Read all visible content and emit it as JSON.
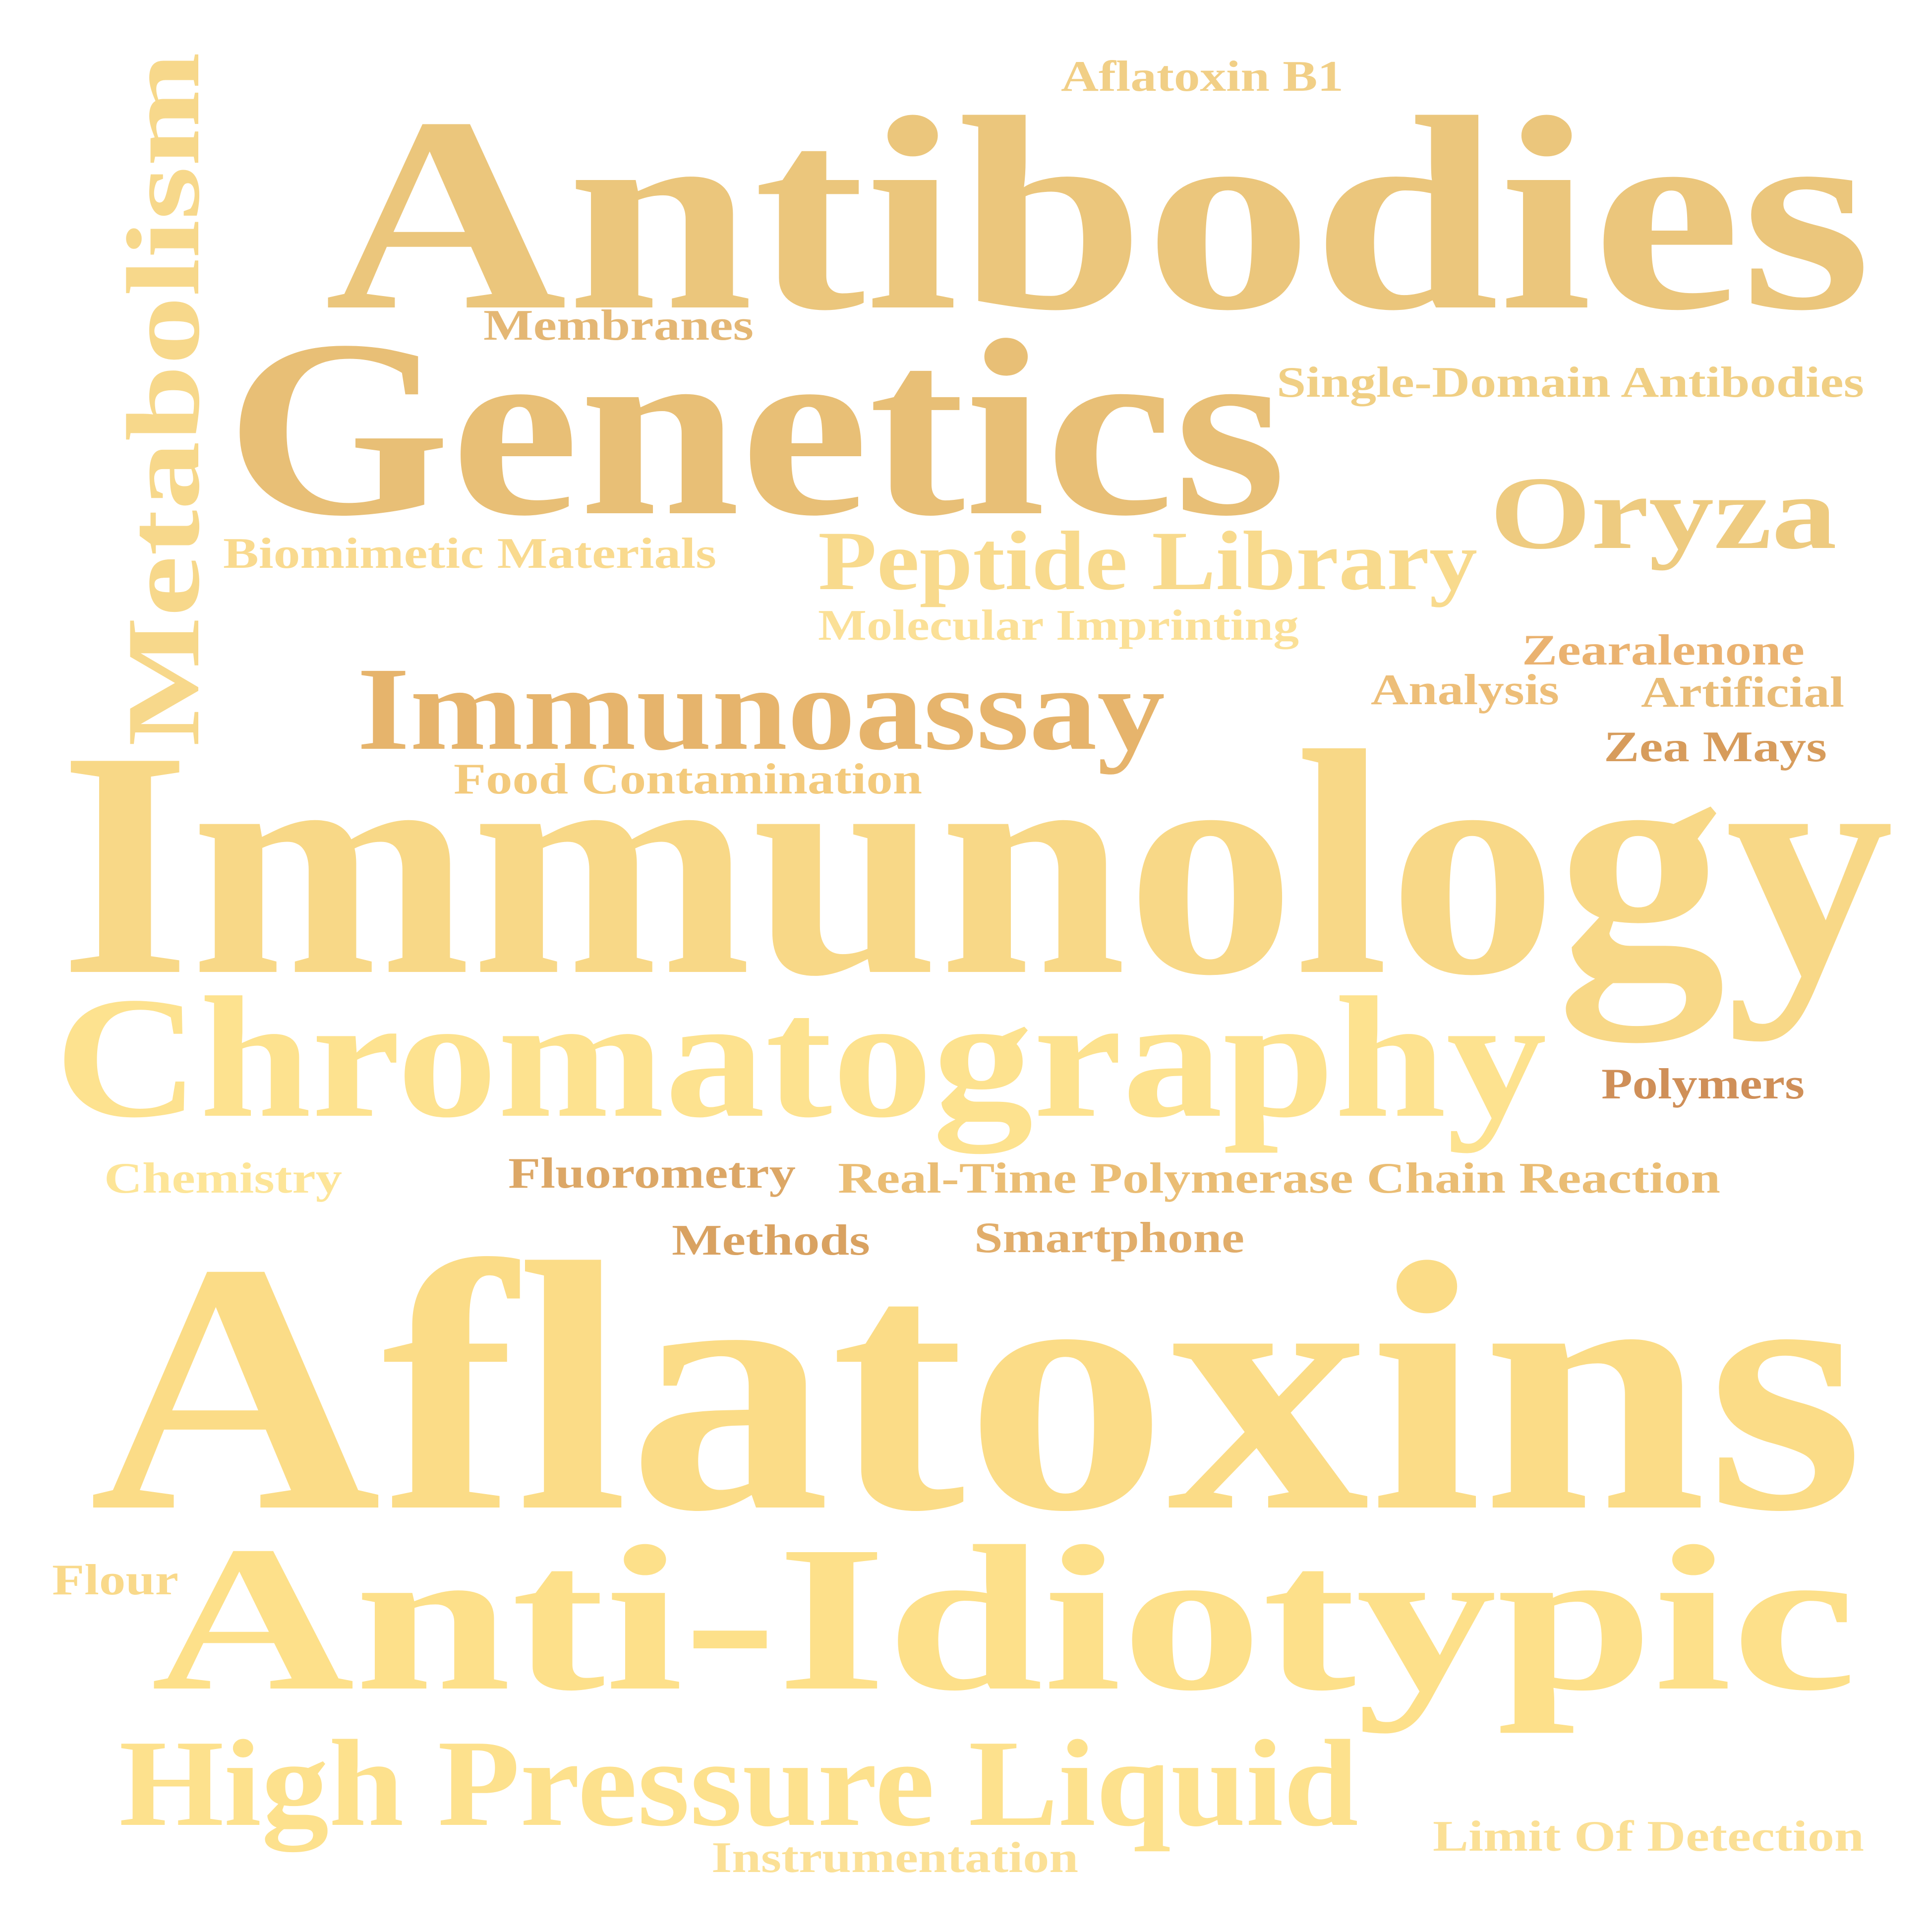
{
  "words": [
    {
      "id": "antibodies",
      "text": "Antibodies",
      "color": "#ebc67c"
    },
    {
      "id": "genetics",
      "text": "Genetics",
      "color": "#e8bf76"
    },
    {
      "id": "immunology",
      "text": "Immunology",
      "color": "#f8d887"
    },
    {
      "id": "aflatoxins",
      "text": "Aflatoxins",
      "color": "#fbdc87"
    },
    {
      "id": "anti-idiotypic",
      "text": "Anti-Idiotypic",
      "color": "#fde08a"
    },
    {
      "id": "chromatography",
      "text": "Chromatography",
      "color": "#fde28f"
    },
    {
      "id": "high-pressure-liquid",
      "text": "High Pressure Liquid",
      "color": "#fde18d"
    },
    {
      "id": "metabolism",
      "text": "Metabolism",
      "color": "#f7d88b"
    },
    {
      "id": "immunoassay",
      "text": "Immunoassay",
      "color": "#e6b46c"
    },
    {
      "id": "oryza",
      "text": "Oryza",
      "color": "#eecb80"
    },
    {
      "id": "peptide-library",
      "text": "Peptide Library",
      "color": "#f8da8d"
    },
    {
      "id": "aflatoxin-b1",
      "text": "Aflatoxin B1",
      "color": "#f1cf86"
    },
    {
      "id": "membranes",
      "text": "Membranes",
      "color": "#e4b774"
    },
    {
      "id": "single-domain-antibodies",
      "text": "Single-Domain Antibodies",
      "color": "#f0cf84"
    },
    {
      "id": "biomimetic-materials",
      "text": "Biomimetic Materials",
      "color": "#f9da8f"
    },
    {
      "id": "molecular-imprinting",
      "text": "Molecular Imprinting",
      "color": "#fbe097"
    },
    {
      "id": "zearalenone",
      "text": "Zearalenone",
      "color": "#eab270"
    },
    {
      "id": "analysis",
      "text": "Analysis",
      "color": "#edbe78"
    },
    {
      "id": "artificial",
      "text": "Artificial",
      "color": "#e9bc77"
    },
    {
      "id": "zea-mays",
      "text": "Zea Mays",
      "color": "#d79c5c"
    },
    {
      "id": "food-contamination",
      "text": "Food Contamination",
      "color": "#f3ca7c"
    },
    {
      "id": "polymers",
      "text": "Polymers",
      "color": "#cf8f58"
    },
    {
      "id": "chemistry",
      "text": "Chemistry",
      "color": "#fde598"
    },
    {
      "id": "fluorometry",
      "text": "Fluorometry",
      "color": "#dca766"
    },
    {
      "id": "real-time-pcr",
      "text": "Real-Time Polymerase Chain Reaction",
      "color": "#eabd74"
    },
    {
      "id": "methods",
      "text": "Methods",
      "color": "#d9a261"
    },
    {
      "id": "smartphone",
      "text": "Smartphone",
      "color": "#e1ad6a"
    },
    {
      "id": "flour",
      "text": "Flour",
      "color": "#f9d98a"
    },
    {
      "id": "limit-of-detection",
      "text": "Limit Of Detection",
      "color": "#fbe096"
    },
    {
      "id": "instrumentation",
      "text": "Instrumentation",
      "color": "#fbe096"
    }
  ]
}
